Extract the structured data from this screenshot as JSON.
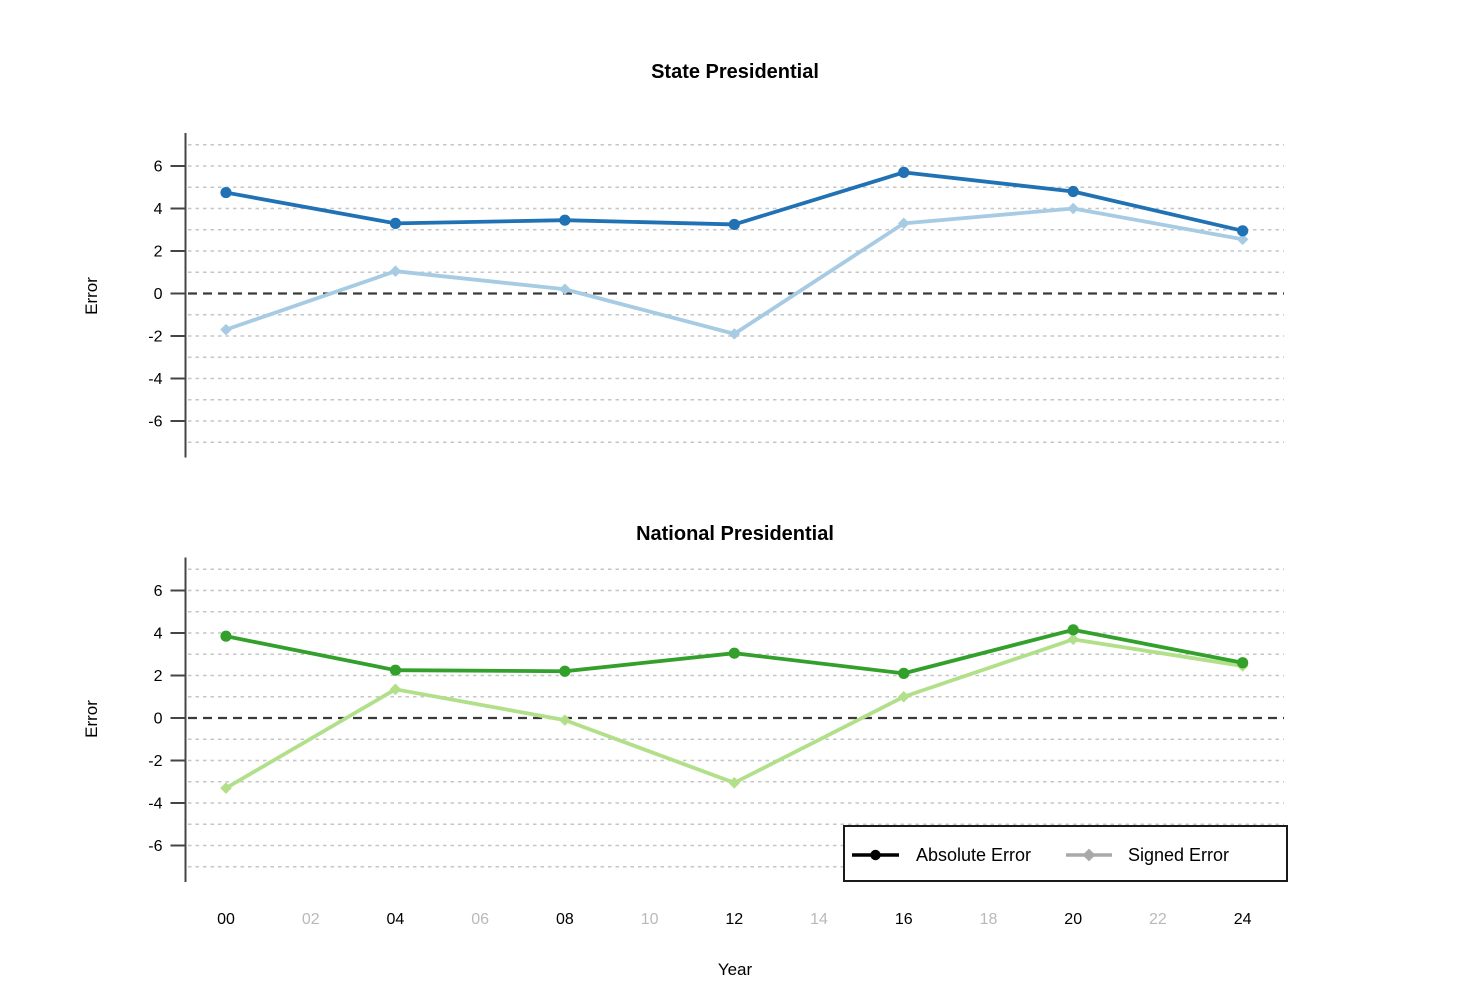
{
  "chart_data": [
    {
      "type": "line",
      "title": "State Presidential",
      "ylabel": "Error",
      "x_years": [
        0,
        4,
        8,
        12,
        16,
        20,
        24
      ],
      "x_year_labels": [
        "00",
        "04",
        "08",
        "12",
        "16",
        "20",
        "24"
      ],
      "series": [
        {
          "name": "Absolute Error",
          "marker": "circle",
          "color": "#2171b5",
          "values": [
            4.75,
            3.3,
            3.45,
            3.25,
            5.7,
            4.8,
            2.95
          ]
        },
        {
          "name": "Signed Error",
          "marker": "diamond",
          "color": "#a6cbe3",
          "values": [
            -1.7,
            1.05,
            0.2,
            -1.9,
            3.3,
            4.0,
            2.55
          ]
        }
      ],
      "ylim": [
        -7.5,
        7.5
      ],
      "yticks": [
        6,
        4,
        2,
        0,
        -2,
        -4,
        -6
      ],
      "grid_lines_every": 1,
      "zero_reference_line": true,
      "legend_position": "none"
    },
    {
      "type": "line",
      "title": "National Presidential",
      "ylabel": "Error",
      "x_years": [
        0,
        4,
        8,
        12,
        16,
        20,
        24
      ],
      "x_year_labels": [
        "00",
        "04",
        "08",
        "12",
        "16",
        "20",
        "24"
      ],
      "series": [
        {
          "name": "Absolute Error",
          "marker": "circle",
          "color": "#33a02c",
          "values": [
            3.85,
            2.25,
            2.2,
            3.05,
            2.1,
            4.15,
            2.6
          ]
        },
        {
          "name": "Signed Error",
          "marker": "diamond",
          "color": "#b2df8a",
          "values": [
            -3.3,
            1.35,
            -0.1,
            -3.05,
            1.0,
            3.7,
            2.45
          ]
        }
      ],
      "ylim": [
        -7.5,
        7.5
      ],
      "yticks": [
        6,
        4,
        2,
        0,
        -2,
        -4,
        -6
      ],
      "grid_lines_every": 1,
      "zero_reference_line": true,
      "legend_position": "bottom-right"
    }
  ],
  "x_axis": {
    "label": "Year",
    "ticks": [
      {
        "label": "00",
        "muted": false
      },
      {
        "label": "02",
        "muted": true
      },
      {
        "label": "04",
        "muted": false
      },
      {
        "label": "06",
        "muted": true
      },
      {
        "label": "08",
        "muted": false
      },
      {
        "label": "10",
        "muted": true
      },
      {
        "label": "12",
        "muted": false
      },
      {
        "label": "14",
        "muted": true
      },
      {
        "label": "16",
        "muted": false
      },
      {
        "label": "18",
        "muted": true
      },
      {
        "label": "20",
        "muted": false
      },
      {
        "label": "22",
        "muted": true
      },
      {
        "label": "24",
        "muted": false
      }
    ]
  },
  "legend": {
    "items": [
      {
        "label": "Absolute Error",
        "marker": "circle",
        "color": "#000000"
      },
      {
        "label": "Signed Error",
        "marker": "diamond",
        "color": "#a9a9a9"
      }
    ]
  },
  "style": {
    "grid_color": "#c6c6c6",
    "zero_line_color": "#3a3a3a",
    "axis_color": "#454545",
    "tick_label_color": "#000000",
    "muted_tick_label_color": "#b9b9b9",
    "background": "#ffffff"
  }
}
